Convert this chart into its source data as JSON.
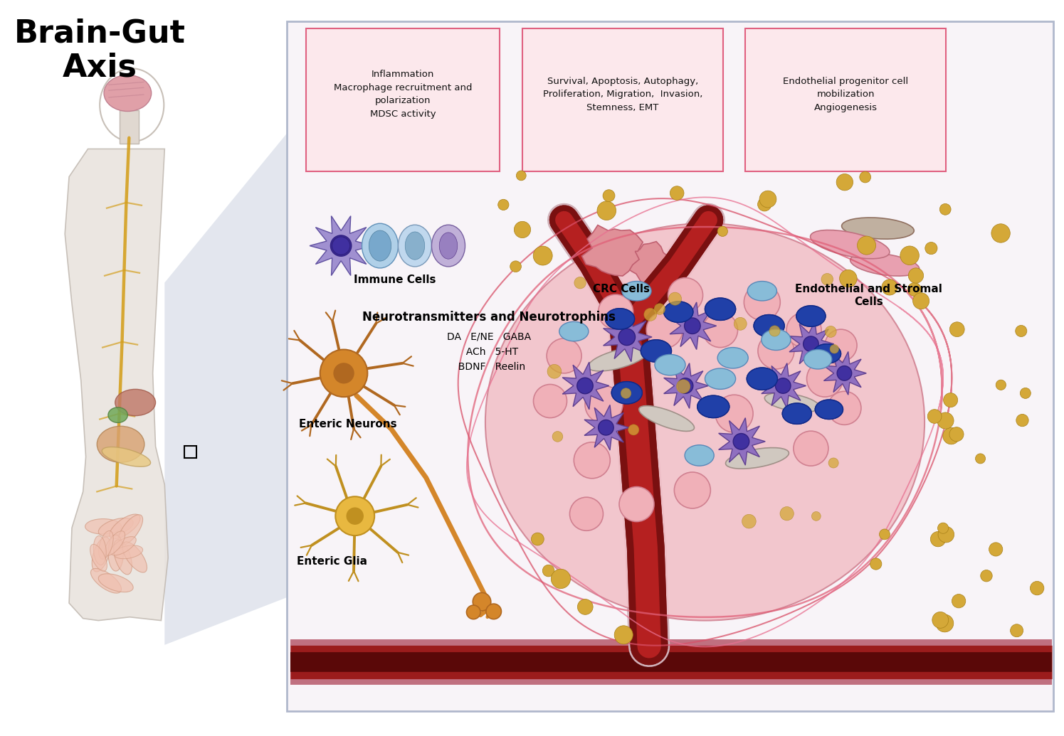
{
  "title": "Brain-Gut\nAxis",
  "title_fontsize": 32,
  "bg_color": "#ffffff",
  "pink_light": "#fce8ec",
  "pink_border": "#e06080",
  "box1_text": "Inflammation\nMacrophage recruitment and\npolarization\nMDSC activity",
  "box2_text": "Survival, Apoptosis, Autophagy,\nProliferation, Migration,  Invasion,\nStemness, EMT",
  "box3_text": "Endothelial progenitor cell\nmobilization\nAngiogenesis",
  "neuro_title": "Neurotransmitters and Neurotrophins",
  "neuro_items": "DA   E/NE   GABA\n  ACh   5-HT\n  BDNF   Reelin",
  "label_immune": "Immune Cells",
  "label_crc": "CRC Cells",
  "label_endo": "Endothelial and Stromal\nCells",
  "label_enteric_neurons": "Enteric Neurons",
  "label_enteric_glia": "Enteric Glia",
  "neuron_color": "#d4862a",
  "neuron_dark": "#b06820",
  "glia_color": "#e8b840",
  "glia_dark": "#c09020"
}
